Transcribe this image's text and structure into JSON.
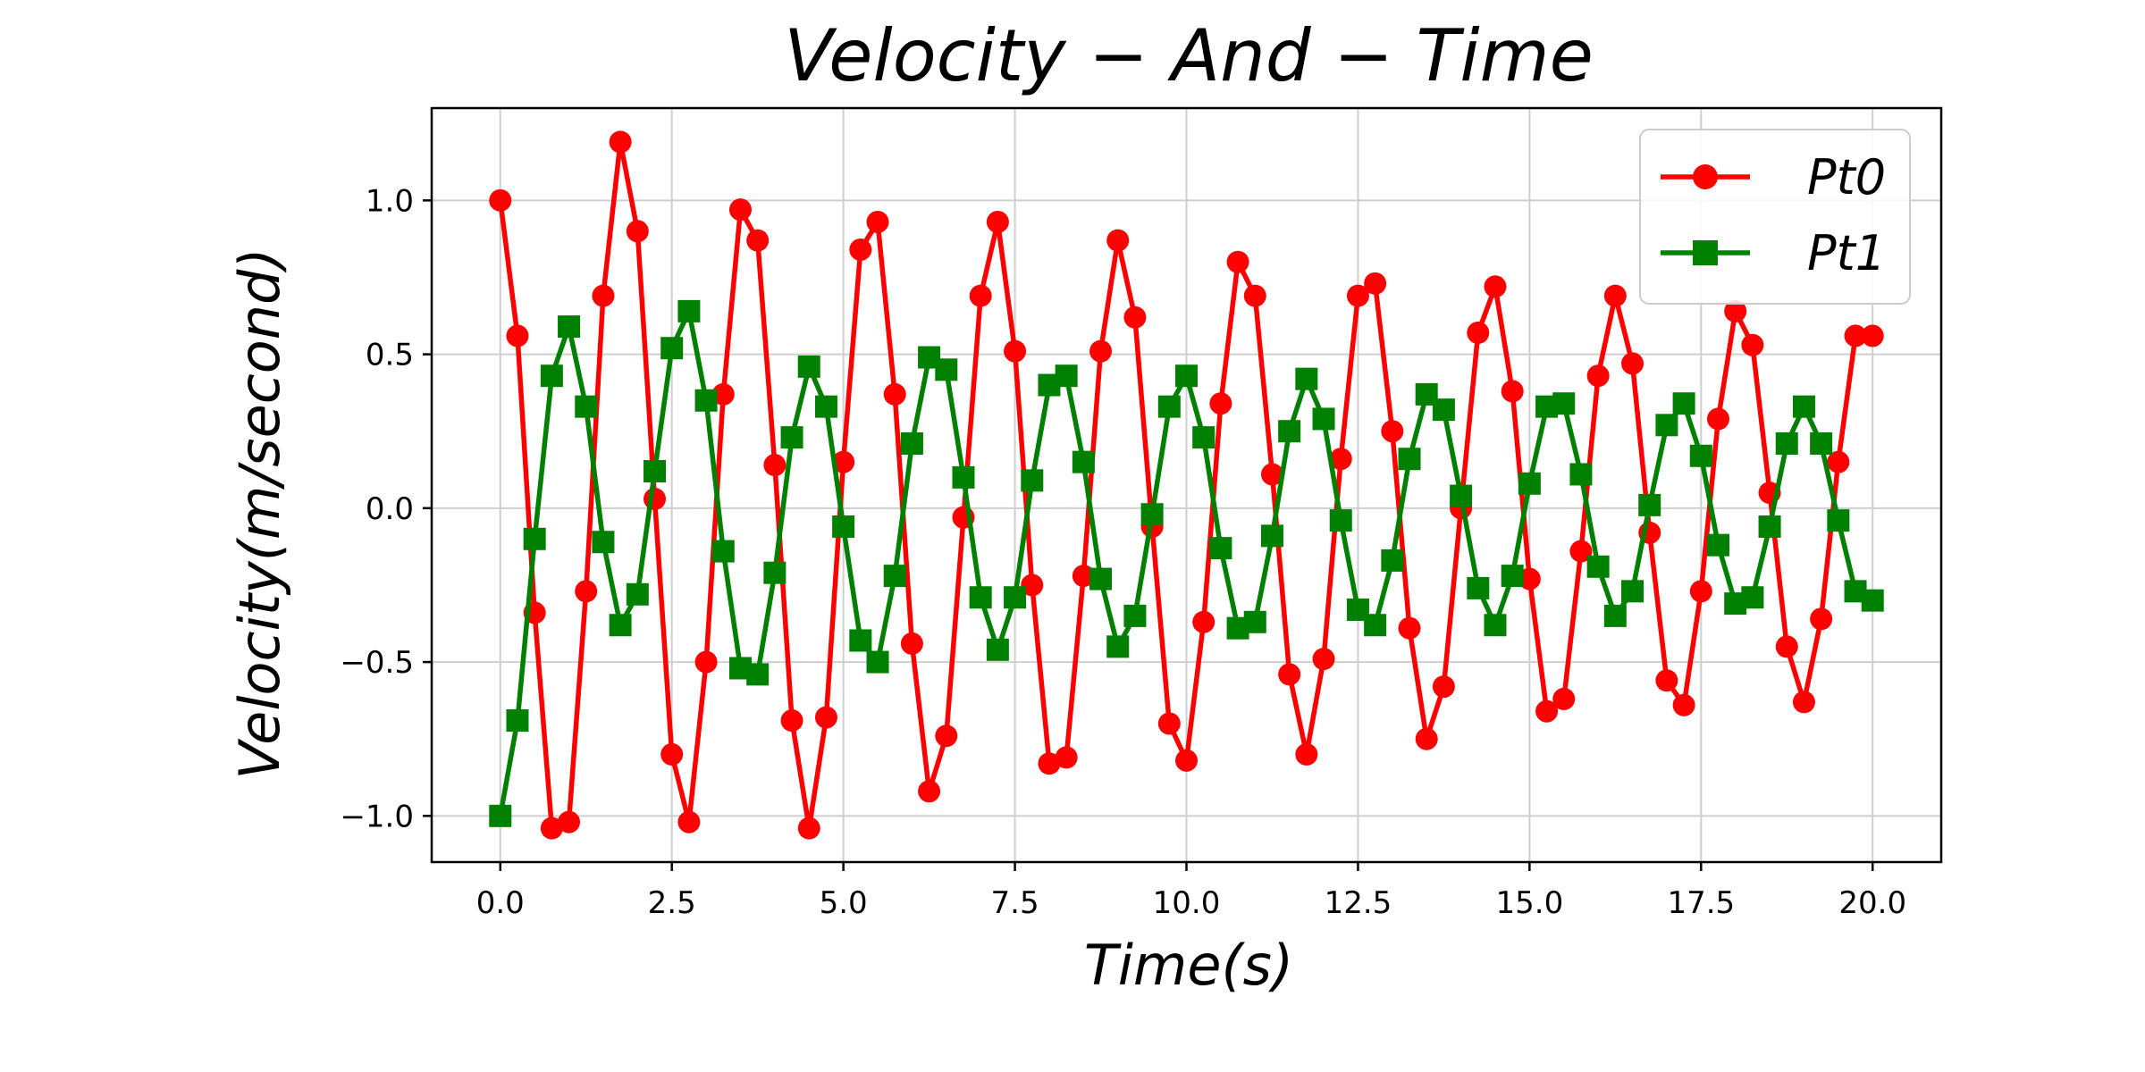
{
  "chart_data": {
    "type": "line",
    "title": "Velocity − And − Time",
    "xlabel": "Time(s)",
    "ylabel": "Velocity(m/second)",
    "xlim": [
      -1,
      21
    ],
    "ylim": [
      -1.15,
      1.3
    ],
    "xticks": [
      0,
      2.5,
      5,
      7.5,
      10,
      12.5,
      15,
      17.5,
      20
    ],
    "xtick_labels": [
      "0.0",
      "2.5",
      "5.0",
      "7.5",
      "10.0",
      "12.5",
      "15.0",
      "17.5",
      "20.0"
    ],
    "yticks": [
      -1,
      -0.5,
      0,
      0.5,
      1
    ],
    "ytick_labels": [
      "−1.0",
      "−0.5",
      "0.0",
      "0.5",
      "1.0"
    ],
    "grid": true,
    "legend_position": "top-right",
    "x": [
      0,
      0.25,
      0.5,
      0.75,
      1,
      1.25,
      1.5,
      1.75,
      2,
      2.25,
      2.5,
      2.75,
      3,
      3.25,
      3.5,
      3.75,
      4,
      4.25,
      4.5,
      4.75,
      5,
      5.25,
      5.5,
      5.75,
      6,
      6.25,
      6.5,
      6.75,
      7,
      7.25,
      7.5,
      7.75,
      8,
      8.25,
      8.5,
      8.75,
      9,
      9.25,
      9.5,
      9.75,
      10,
      10.25,
      10.5,
      10.75,
      11,
      11.25,
      11.5,
      11.75,
      12,
      12.25,
      12.5,
      12.75,
      13,
      13.25,
      13.5,
      13.75,
      14,
      14.25,
      14.5,
      14.75,
      15,
      15.25,
      15.5,
      15.75,
      16,
      16.25,
      16.5,
      16.75,
      17,
      17.25,
      17.5,
      17.75,
      18,
      18.25,
      18.5,
      18.75,
      19,
      19.25,
      19.5,
      19.75,
      20
    ],
    "series": [
      {
        "name": "Pt0",
        "color": "#ff0000",
        "marker": "circle",
        "values": [
          1.0,
          0.56,
          -0.34,
          -1.04,
          -1.02,
          -0.27,
          0.69,
          1.19,
          0.9,
          0.03,
          -0.8,
          -1.02,
          -0.5,
          0.37,
          0.97,
          0.87,
          0.14,
          -0.69,
          -1.04,
          -0.68,
          0.15,
          0.84,
          0.93,
          0.37,
          -0.44,
          -0.92,
          -0.74,
          -0.03,
          0.69,
          0.93,
          0.51,
          -0.25,
          -0.83,
          -0.81,
          -0.22,
          0.51,
          0.87,
          0.62,
          -0.06,
          -0.7,
          -0.82,
          -0.37,
          0.34,
          0.8,
          0.69,
          0.11,
          -0.54,
          -0.8,
          -0.49,
          0.16,
          0.69,
          0.73,
          0.25,
          -0.39,
          -0.75,
          -0.58,
          0.0,
          0.57,
          0.72,
          0.38,
          -0.23,
          -0.66,
          -0.62,
          -0.14,
          0.43,
          0.69,
          0.47,
          -0.08,
          -0.56,
          -0.64,
          -0.27,
          0.29,
          0.64,
          0.53,
          0.05,
          -0.45,
          -0.63,
          -0.36,
          0.15,
          0.56,
          0.56
        ]
      },
      {
        "name": "Pt1",
        "color": "#008000",
        "marker": "square",
        "values": [
          -1.0,
          -0.69,
          -0.1,
          0.43,
          0.59,
          0.33,
          -0.11,
          -0.38,
          -0.28,
          0.12,
          0.52,
          0.64,
          0.35,
          -0.14,
          -0.52,
          -0.54,
          -0.21,
          0.23,
          0.46,
          0.33,
          -0.06,
          -0.43,
          -0.5,
          -0.22,
          0.21,
          0.49,
          0.45,
          0.1,
          -0.29,
          -0.46,
          -0.29,
          0.09,
          0.4,
          0.43,
          0.15,
          -0.23,
          -0.45,
          -0.35,
          -0.02,
          0.33,
          0.43,
          0.23,
          -0.13,
          -0.39,
          -0.37,
          -0.09,
          0.25,
          0.42,
          0.29,
          -0.04,
          -0.33,
          -0.38,
          -0.17,
          0.16,
          0.37,
          0.32,
          0.04,
          -0.26,
          -0.38,
          -0.22,
          0.08,
          0.33,
          0.34,
          0.11,
          -0.19,
          -0.35,
          -0.27,
          0.01,
          0.27,
          0.34,
          0.17,
          -0.12,
          -0.31,
          -0.29,
          -0.06,
          0.21,
          0.33,
          0.21,
          -0.04,
          -0.27,
          -0.3
        ]
      }
    ]
  }
}
